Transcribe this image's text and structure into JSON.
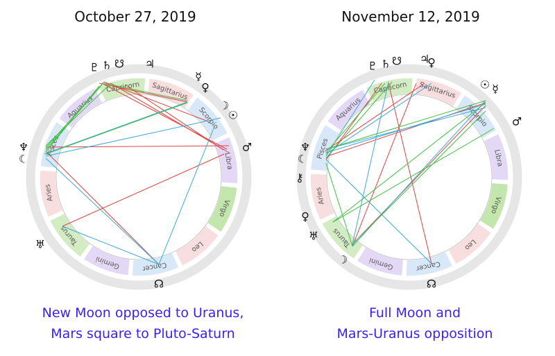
{
  "panels": [
    {
      "title": "October 27, 2019",
      "caption_line1": "New Moon opposed to Uranus,",
      "caption_line2": "Mars square to Pluto-Saturn",
      "signs": [
        {
          "name": "Capricorn",
          "color": "#d3ecc4"
        },
        {
          "name": "Aquarius",
          "color": "#e3d9f6"
        },
        {
          "name": "Pisces",
          "color": "#d8e8f8"
        },
        {
          "name": "Aries",
          "color": "#f8dede"
        },
        {
          "name": "Taurus",
          "color": "#d3ecc4"
        },
        {
          "name": "Gemini",
          "color": "#e3d9f6"
        },
        {
          "name": "Cancer",
          "color": "#d8e8f8"
        },
        {
          "name": "Leo",
          "color": "#f8dede"
        },
        {
          "name": "Virgo",
          "color": "#c3e6ad"
        },
        {
          "name": "Libra",
          "color": "#e3d9f6"
        },
        {
          "name": "Scorpio",
          "color": "#d8e8f8"
        },
        {
          "name": "Sagittarius",
          "color": "#f8dede"
        }
      ],
      "planets": [
        {
          "glyph": "♇",
          "name": "Pluto"
        },
        {
          "glyph": "♄",
          "name": "Saturn"
        },
        {
          "glyph": "☋",
          "name": "South Node"
        },
        {
          "glyph": "♃",
          "name": "Jupiter"
        },
        {
          "glyph": "☿",
          "name": "Mercury"
        },
        {
          "glyph": "♀",
          "name": "Venus"
        },
        {
          "glyph": "☽",
          "name": "Moon"
        },
        {
          "glyph": "☉",
          "name": "Sun"
        },
        {
          "glyph": "♂",
          "name": "Mars"
        },
        {
          "glyph": "☊",
          "name": "North Node"
        },
        {
          "glyph": "♅",
          "name": "Uranus"
        },
        {
          "glyph": "♆",
          "name": "Neptune"
        },
        {
          "glyph": "☾",
          "name": "Moon"
        }
      ]
    },
    {
      "title": "November 12, 2019",
      "caption_line1": "Full Moon and",
      "caption_line2": "Mars-Uranus opposition",
      "signs": [
        {
          "name": "Capricorn",
          "color": "#d3ecc4"
        },
        {
          "name": "Aquarius",
          "color": "#e3d9f6"
        },
        {
          "name": "Pisces",
          "color": "#d8e8f8"
        },
        {
          "name": "Aries",
          "color": "#f8dede"
        },
        {
          "name": "Taurus",
          "color": "#d3ecc4"
        },
        {
          "name": "Gemini",
          "color": "#e3d9f6"
        },
        {
          "name": "Cancer",
          "color": "#d8e8f8"
        },
        {
          "name": "Leo",
          "color": "#f8dede"
        },
        {
          "name": "Virgo",
          "color": "#c3e6ad"
        },
        {
          "name": "Libra",
          "color": "#e3d9f6"
        },
        {
          "name": "Scorpio",
          "color": "#d8e8f8"
        },
        {
          "name": "Sagittarius",
          "color": "#f8dede"
        }
      ],
      "planets": [
        {
          "glyph": "♇",
          "name": "Pluto"
        },
        {
          "glyph": "♄",
          "name": "Saturn"
        },
        {
          "glyph": "☋",
          "name": "South Node"
        },
        {
          "glyph": "♃",
          "name": "Jupiter"
        },
        {
          "glyph": "♀",
          "name": "Venus"
        },
        {
          "glyph": "☉",
          "name": "Sun"
        },
        {
          "glyph": "☿",
          "name": "Mercury"
        },
        {
          "glyph": "♂",
          "name": "Mars"
        },
        {
          "glyph": "☊",
          "name": "North Node"
        },
        {
          "glyph": "☽",
          "name": "Moon"
        },
        {
          "glyph": "♅",
          "name": "Uranus"
        },
        {
          "glyph": "♀",
          "name": "Ceres"
        },
        {
          "glyph": "⚷",
          "name": "Chiron"
        },
        {
          "glyph": "♆",
          "name": "Neptune"
        },
        {
          "glyph": "☾",
          "name": "Moon"
        }
      ]
    }
  ],
  "colors": {
    "outer_ring": "#e6e6e6",
    "line_red": "#e04040",
    "line_blue": "#3aa9d8",
    "line_green": "#3fbf3f",
    "caption": "#3a1ff0"
  }
}
